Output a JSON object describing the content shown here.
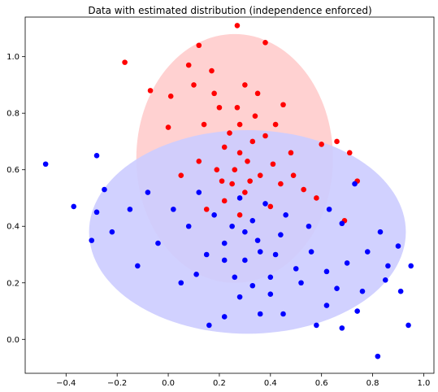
{
  "chart_data": {
    "type": "scatter",
    "title": "Data with estimated distribution (independence enforced)",
    "xlabel": "",
    "ylabel": "",
    "xlim": [
      -0.56,
      1.04
    ],
    "ylim": [
      -0.12,
      1.14
    ],
    "x_ticks": [
      -0.4,
      -0.2,
      0.0,
      0.2,
      0.4,
      0.6,
      0.8,
      1.0
    ],
    "x_tick_labels": [
      "−0.4",
      "−0.2",
      "0.0",
      "0.2",
      "0.4",
      "0.6",
      "0.8",
      "1.0"
    ],
    "y_ticks": [
      0.0,
      0.2,
      0.4,
      0.6,
      0.8,
      1.0
    ],
    "y_tick_labels": [
      "0.0",
      "0.2",
      "0.4",
      "0.6",
      "0.8",
      "1.0"
    ],
    "grid": false,
    "legend": "none",
    "ellipses": [
      {
        "color": "#ffcccc",
        "center": [
          0.26,
          0.64
        ],
        "width": 0.77,
        "height": 0.88
      },
      {
        "color": "#ccccff",
        "center": [
          0.31,
          0.38
        ],
        "width": 1.24,
        "height": 0.72
      }
    ],
    "series": [
      {
        "color": "#ff0000",
        "points": [
          [
            -0.17,
            0.98
          ],
          [
            0.27,
            1.11
          ],
          [
            0.66,
            0.7
          ],
          [
            0.71,
            0.66
          ],
          [
            0.74,
            0.56
          ],
          [
            0.69,
            0.42
          ],
          [
            0.0,
            0.75
          ],
          [
            0.12,
            1.04
          ],
          [
            0.38,
            1.05
          ],
          [
            0.08,
            0.97
          ],
          [
            0.17,
            0.95
          ],
          [
            0.3,
            0.9
          ],
          [
            0.35,
            0.87
          ],
          [
            0.45,
            0.83
          ],
          [
            0.42,
            0.76
          ],
          [
            -0.07,
            0.88
          ],
          [
            0.01,
            0.86
          ],
          [
            0.48,
            0.66
          ],
          [
            0.2,
            0.82
          ],
          [
            0.27,
            0.82
          ],
          [
            0.33,
            0.7
          ],
          [
            0.22,
            0.68
          ],
          [
            0.14,
            0.76
          ],
          [
            0.24,
            0.73
          ],
          [
            0.31,
            0.63
          ],
          [
            0.19,
            0.6
          ],
          [
            0.36,
            0.58
          ],
          [
            0.28,
            0.66
          ],
          [
            0.25,
            0.55
          ],
          [
            0.41,
            0.62
          ],
          [
            0.12,
            0.63
          ],
          [
            0.3,
            0.52
          ],
          [
            0.22,
            0.49
          ],
          [
            0.15,
            0.46
          ],
          [
            0.28,
            0.44
          ],
          [
            0.4,
            0.47
          ],
          [
            0.05,
            0.58
          ],
          [
            0.53,
            0.53
          ],
          [
            0.58,
            0.5
          ],
          [
            0.6,
            0.69
          ],
          [
            0.1,
            0.9
          ],
          [
            0.18,
            0.87
          ],
          [
            0.28,
            0.76
          ],
          [
            0.34,
            0.79
          ],
          [
            0.38,
            0.72
          ],
          [
            0.26,
            0.6
          ],
          [
            0.21,
            0.56
          ],
          [
            0.32,
            0.56
          ],
          [
            0.44,
            0.55
          ],
          [
            0.49,
            0.58
          ]
        ]
      },
      {
        "color": "#0000ff",
        "points": [
          [
            -0.48,
            0.62
          ],
          [
            -0.37,
            0.47
          ],
          [
            -0.28,
            0.65
          ],
          [
            -0.28,
            0.45
          ],
          [
            0.95,
            0.26
          ],
          [
            0.82,
            -0.06
          ],
          [
            0.91,
            0.17
          ],
          [
            0.94,
            0.05
          ],
          [
            0.68,
            0.04
          ],
          [
            0.74,
            0.1
          ],
          [
            0.58,
            0.05
          ],
          [
            0.16,
            0.05
          ],
          [
            0.22,
            0.08
          ],
          [
            0.36,
            0.09
          ],
          [
            0.45,
            0.09
          ],
          [
            0.28,
            0.15
          ],
          [
            0.33,
            0.19
          ],
          [
            0.4,
            0.16
          ],
          [
            0.52,
            0.2
          ],
          [
            0.62,
            0.12
          ],
          [
            0.05,
            0.2
          ],
          [
            0.11,
            0.23
          ],
          [
            -0.12,
            0.26
          ],
          [
            -0.04,
            0.34
          ],
          [
            -0.22,
            0.38
          ],
          [
            -0.15,
            0.46
          ],
          [
            0.15,
            0.3
          ],
          [
            0.22,
            0.34
          ],
          [
            0.3,
            0.28
          ],
          [
            0.35,
            0.35
          ],
          [
            0.42,
            0.3
          ],
          [
            0.5,
            0.25
          ],
          [
            0.56,
            0.31
          ],
          [
            0.62,
            0.24
          ],
          [
            0.7,
            0.27
          ],
          [
            0.78,
            0.31
          ],
          [
            0.83,
            0.38
          ],
          [
            0.86,
            0.26
          ],
          [
            0.76,
            0.17
          ],
          [
            0.66,
            0.18
          ],
          [
            0.25,
            0.4
          ],
          [
            0.33,
            0.42
          ],
          [
            0.38,
            0.48
          ],
          [
            0.28,
            0.5
          ],
          [
            0.18,
            0.44
          ],
          [
            0.46,
            0.44
          ],
          [
            0.55,
            0.4
          ],
          [
            0.63,
            0.46
          ],
          [
            0.73,
            0.55
          ],
          [
            0.68,
            0.41
          ],
          [
            0.08,
            0.4
          ],
          [
            0.02,
            0.46
          ],
          [
            0.12,
            0.52
          ],
          [
            0.26,
            0.22
          ],
          [
            0.4,
            0.22
          ],
          [
            -0.08,
            0.52
          ],
          [
            0.3,
            0.38
          ],
          [
            0.36,
            0.31
          ],
          [
            0.44,
            0.37
          ],
          [
            0.22,
            0.28
          ],
          [
            -0.3,
            0.35
          ],
          [
            -0.25,
            0.53
          ],
          [
            0.85,
            0.21
          ],
          [
            0.9,
            0.33
          ]
        ]
      }
    ]
  }
}
